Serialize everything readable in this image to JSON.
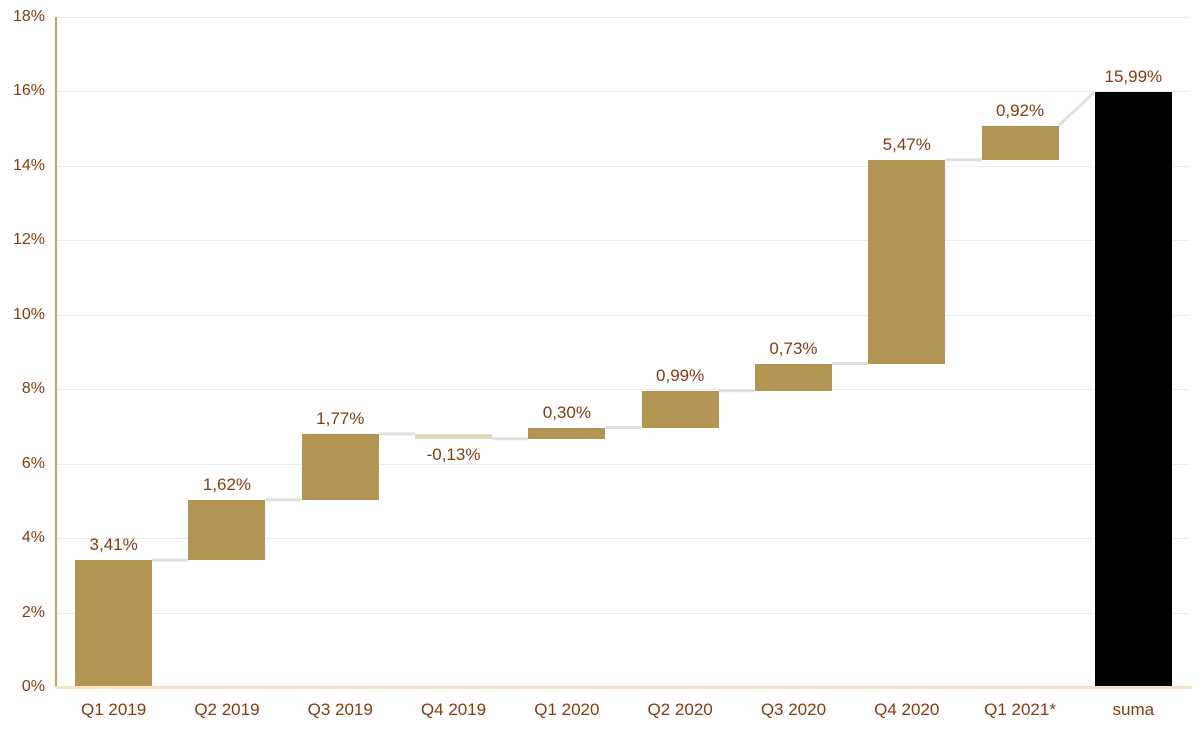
{
  "chart_data": {
    "type": "waterfall",
    "title": "",
    "xlabel": "",
    "ylabel": "",
    "legend": "none",
    "grid": "horizontal",
    "ylim": [
      0,
      18
    ],
    "categories": [
      "Q1 2019",
      "Q2 2019",
      "Q3 2019",
      "Q4 2019",
      "Q1 2020",
      "Q2 2020",
      "Q3 2020",
      "Q4 2020",
      "Q1 2021*",
      "suma"
    ],
    "values": [
      3.41,
      1.62,
      1.77,
      -0.13,
      0.3,
      0.99,
      0.73,
      5.47,
      0.92,
      15.99
    ],
    "item_types": [
      "delta",
      "delta",
      "delta",
      "delta",
      "delta",
      "delta",
      "delta",
      "delta",
      "delta",
      "total"
    ],
    "data_labels": [
      "3,41%",
      "1,62%",
      "1,77%",
      "-0,13%",
      "0,30%",
      "0,99%",
      "0,73%",
      "5,47%",
      "0,92%",
      "15,99%"
    ],
    "y_ticks": [
      {
        "value": 0,
        "label": "0%"
      },
      {
        "value": 2,
        "label": "2%"
      },
      {
        "value": 4,
        "label": "4%"
      },
      {
        "value": 6,
        "label": "6%"
      },
      {
        "value": 8,
        "label": "8%"
      },
      {
        "value": 10,
        "label": "10%"
      },
      {
        "value": 12,
        "label": "12%"
      },
      {
        "value": 14,
        "label": "14%"
      },
      {
        "value": 16,
        "label": "16%"
      },
      {
        "value": 18,
        "label": "18%"
      }
    ],
    "colors": {
      "bar_positive": "#b29552",
      "bar_negative": "#e1d7bb",
      "bar_total": "#000000",
      "label_text": "#833c0f",
      "axis_text": "#833c0f",
      "y_axis_line": "#c6a45f",
      "x_axis_line": "#f9e2c4",
      "gridline": "#ebebeb",
      "connector": "#e0e0e0"
    }
  }
}
